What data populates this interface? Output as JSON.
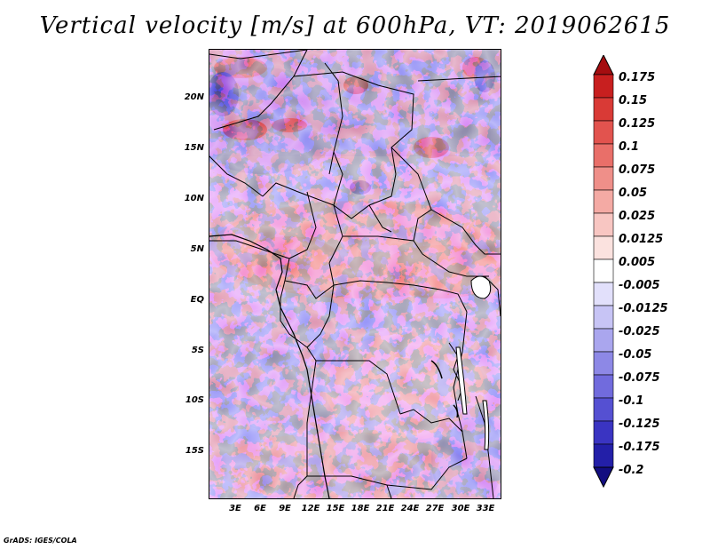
{
  "title": "Vertical velocity [m/s] at 600hPa, VT: 2019062615",
  "footer": "GrADS: IGES/COLA",
  "latitude_labels": [
    "20N",
    "15N",
    "10N",
    "5N",
    "EQ",
    "5S",
    "10S",
    "15S"
  ],
  "longitude_labels": [
    "3E",
    "6E",
    "9E",
    "12E",
    "15E",
    "18E",
    "21E",
    "24E",
    "27E",
    "30E",
    "33E"
  ],
  "map_extent": {
    "lon": [
      0,
      35
    ],
    "lat": [
      -20,
      24
    ]
  },
  "colorbar": {
    "labels": [
      "0.175",
      "0.15",
      "0.125",
      "0.1",
      "0.075",
      "0.05",
      "0.025",
      "0.0125",
      "0.005",
      "-0.005",
      "-0.0125",
      "-0.025",
      "-0.05",
      "-0.075",
      "-0.1",
      "-0.125",
      "-0.175",
      "-0.2"
    ],
    "colors": [
      "#a50d10",
      "#c81f1f",
      "#d93a36",
      "#e2534e",
      "#e96f69",
      "#ef8f89",
      "#f4aaa4",
      "#f8c6c2",
      "#fbe2df",
      "#ffffff",
      "#e2e0fb",
      "#c7c4f5",
      "#aaa6ee",
      "#8d88e6",
      "#716bdd",
      "#5550d2",
      "#3a34c2",
      "#231fa8",
      "#120d80"
    ]
  }
}
